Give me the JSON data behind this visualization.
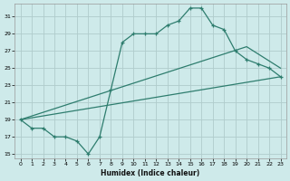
{
  "xlabel": "Humidex (Indice chaleur)",
  "bg_color": "#ceeaea",
  "grid_color": "#b0cccc",
  "line_color": "#2e7d6e",
  "xlim": [
    -0.5,
    23.5
  ],
  "ylim": [
    14.5,
    32.5
  ],
  "yticks": [
    15,
    17,
    19,
    21,
    23,
    25,
    27,
    29,
    31
  ],
  "xticks": [
    0,
    1,
    2,
    3,
    4,
    5,
    6,
    7,
    8,
    9,
    10,
    11,
    12,
    13,
    14,
    15,
    16,
    17,
    18,
    19,
    20,
    21,
    22,
    23
  ],
  "line1_x": [
    0,
    1,
    2,
    3,
    4,
    5,
    6,
    7,
    8,
    9,
    10,
    11,
    12,
    13,
    14,
    15,
    16,
    17,
    18,
    19,
    20,
    21,
    22,
    23
  ],
  "line1_y": [
    19,
    18,
    18,
    17,
    17,
    16.5,
    15,
    17,
    22.5,
    28,
    29,
    29,
    29,
    30,
    30.5,
    32,
    32,
    30,
    29.5,
    27,
    26,
    25.5,
    25,
    24
  ],
  "line2_x": [
    0,
    23
  ],
  "line2_y": [
    19,
    24
  ],
  "line3_x": [
    0,
    20,
    23
  ],
  "line3_y": [
    19,
    27.5,
    25
  ]
}
